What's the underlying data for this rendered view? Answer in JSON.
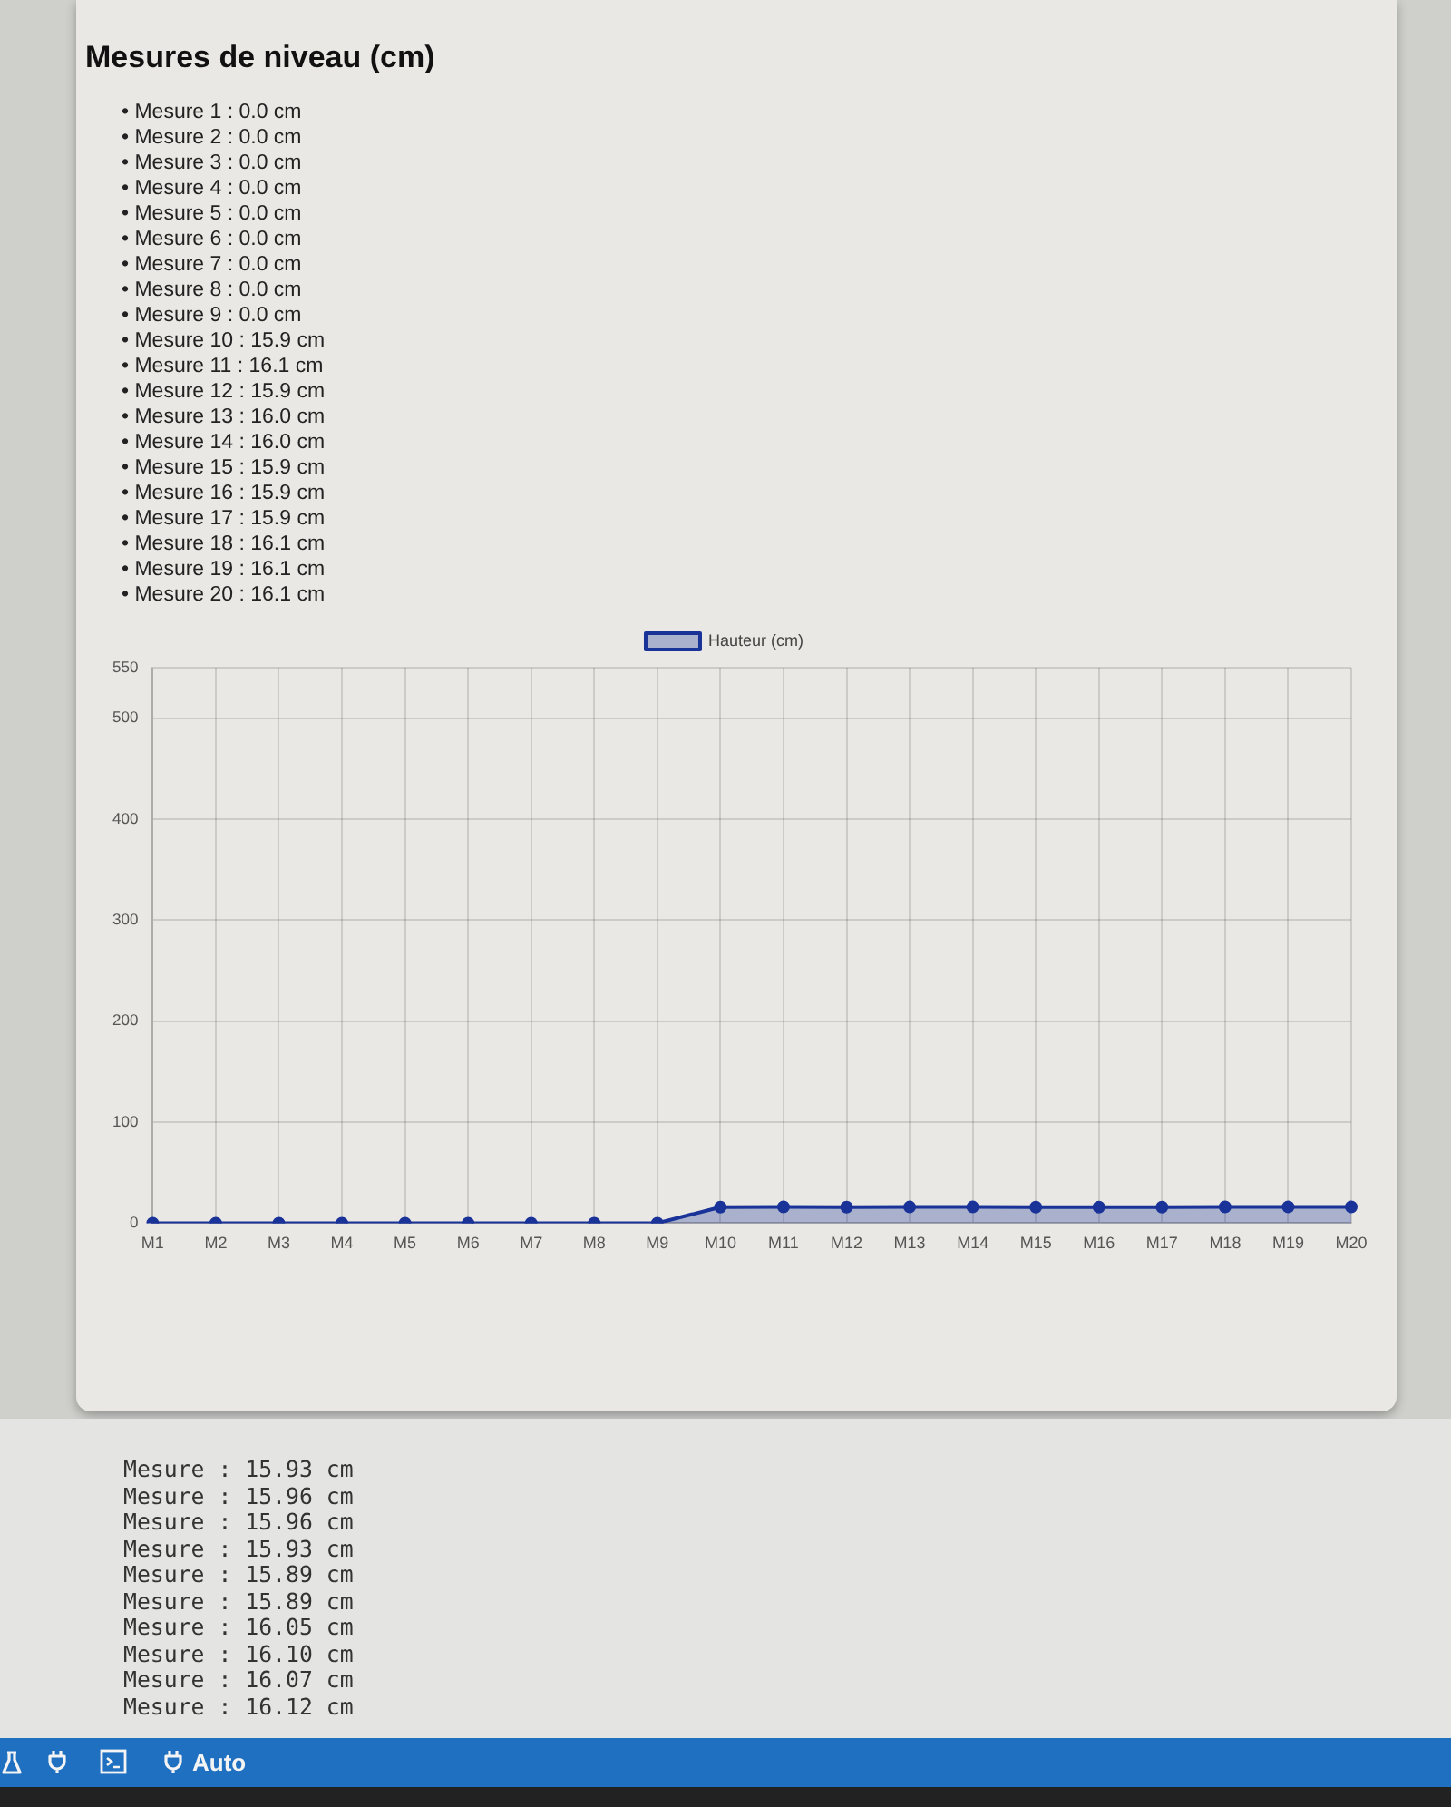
{
  "chart_data": {
    "type": "area",
    "title": "Mesures de niveau (cm)",
    "categories": [
      "M1",
      "M2",
      "M3",
      "M4",
      "M5",
      "M6",
      "M7",
      "M8",
      "M9",
      "M10",
      "M11",
      "M12",
      "M13",
      "M14",
      "M15",
      "M16",
      "M17",
      "M18",
      "M19",
      "M20"
    ],
    "series": [
      {
        "name": "Hauteur (cm)",
        "color": "#1a3399",
        "values": [
          0,
          0,
          0,
          0,
          0,
          0,
          0,
          0,
          0,
          15.9,
          16.1,
          15.9,
          16.0,
          16.0,
          15.9,
          15.9,
          15.9,
          16.1,
          16.1,
          16.1
        ]
      }
    ],
    "ylim": [
      0,
      550
    ],
    "yticks": [
      0,
      100,
      200,
      300,
      400,
      500,
      550
    ],
    "grid": true,
    "legend": "top",
    "marker": "circle",
    "annotations": [
      "• Mesure 1 : 0.0 cm",
      "• Mesure 2 : 0.0 cm",
      "• Mesure 3 : 0.0 cm",
      "• Mesure 4 : 0.0 cm",
      "• Mesure 5 : 0.0 cm",
      "• Mesure 6 : 0.0 cm",
      "• Mesure 7 : 0.0 cm",
      "• Mesure 8 : 0.0 cm",
      "• Mesure 9 : 0.0 cm",
      "• Mesure 10 : 15.9 cm",
      "• Mesure 11 : 16.1 cm",
      "• Mesure 12 : 15.9 cm",
      "• Mesure 13 : 16.0 cm",
      "• Mesure 14 : 16.0 cm",
      "• Mesure 15 : 15.9 cm",
      "• Mesure 16 : 15.9 cm",
      "• Mesure 17 : 15.9 cm",
      "• Mesure 18 : 16.1 cm",
      "• Mesure 19 : 16.1 cm",
      "• Mesure 20 : 16.1 cm",
      "Mesure : 15.93 cm",
      "Mesure : 15.96 cm",
      "Mesure : 15.96 cm",
      "Mesure : 15.93 cm",
      "Mesure : 15.89 cm",
      "Mesure : 15.89 cm",
      "Mesure : 16.05 cm",
      "Mesure : 16.10 cm",
      "Mesure : 16.07 cm",
      "Mesure : 16.12 cm",
      "Auto"
    ]
  }
}
